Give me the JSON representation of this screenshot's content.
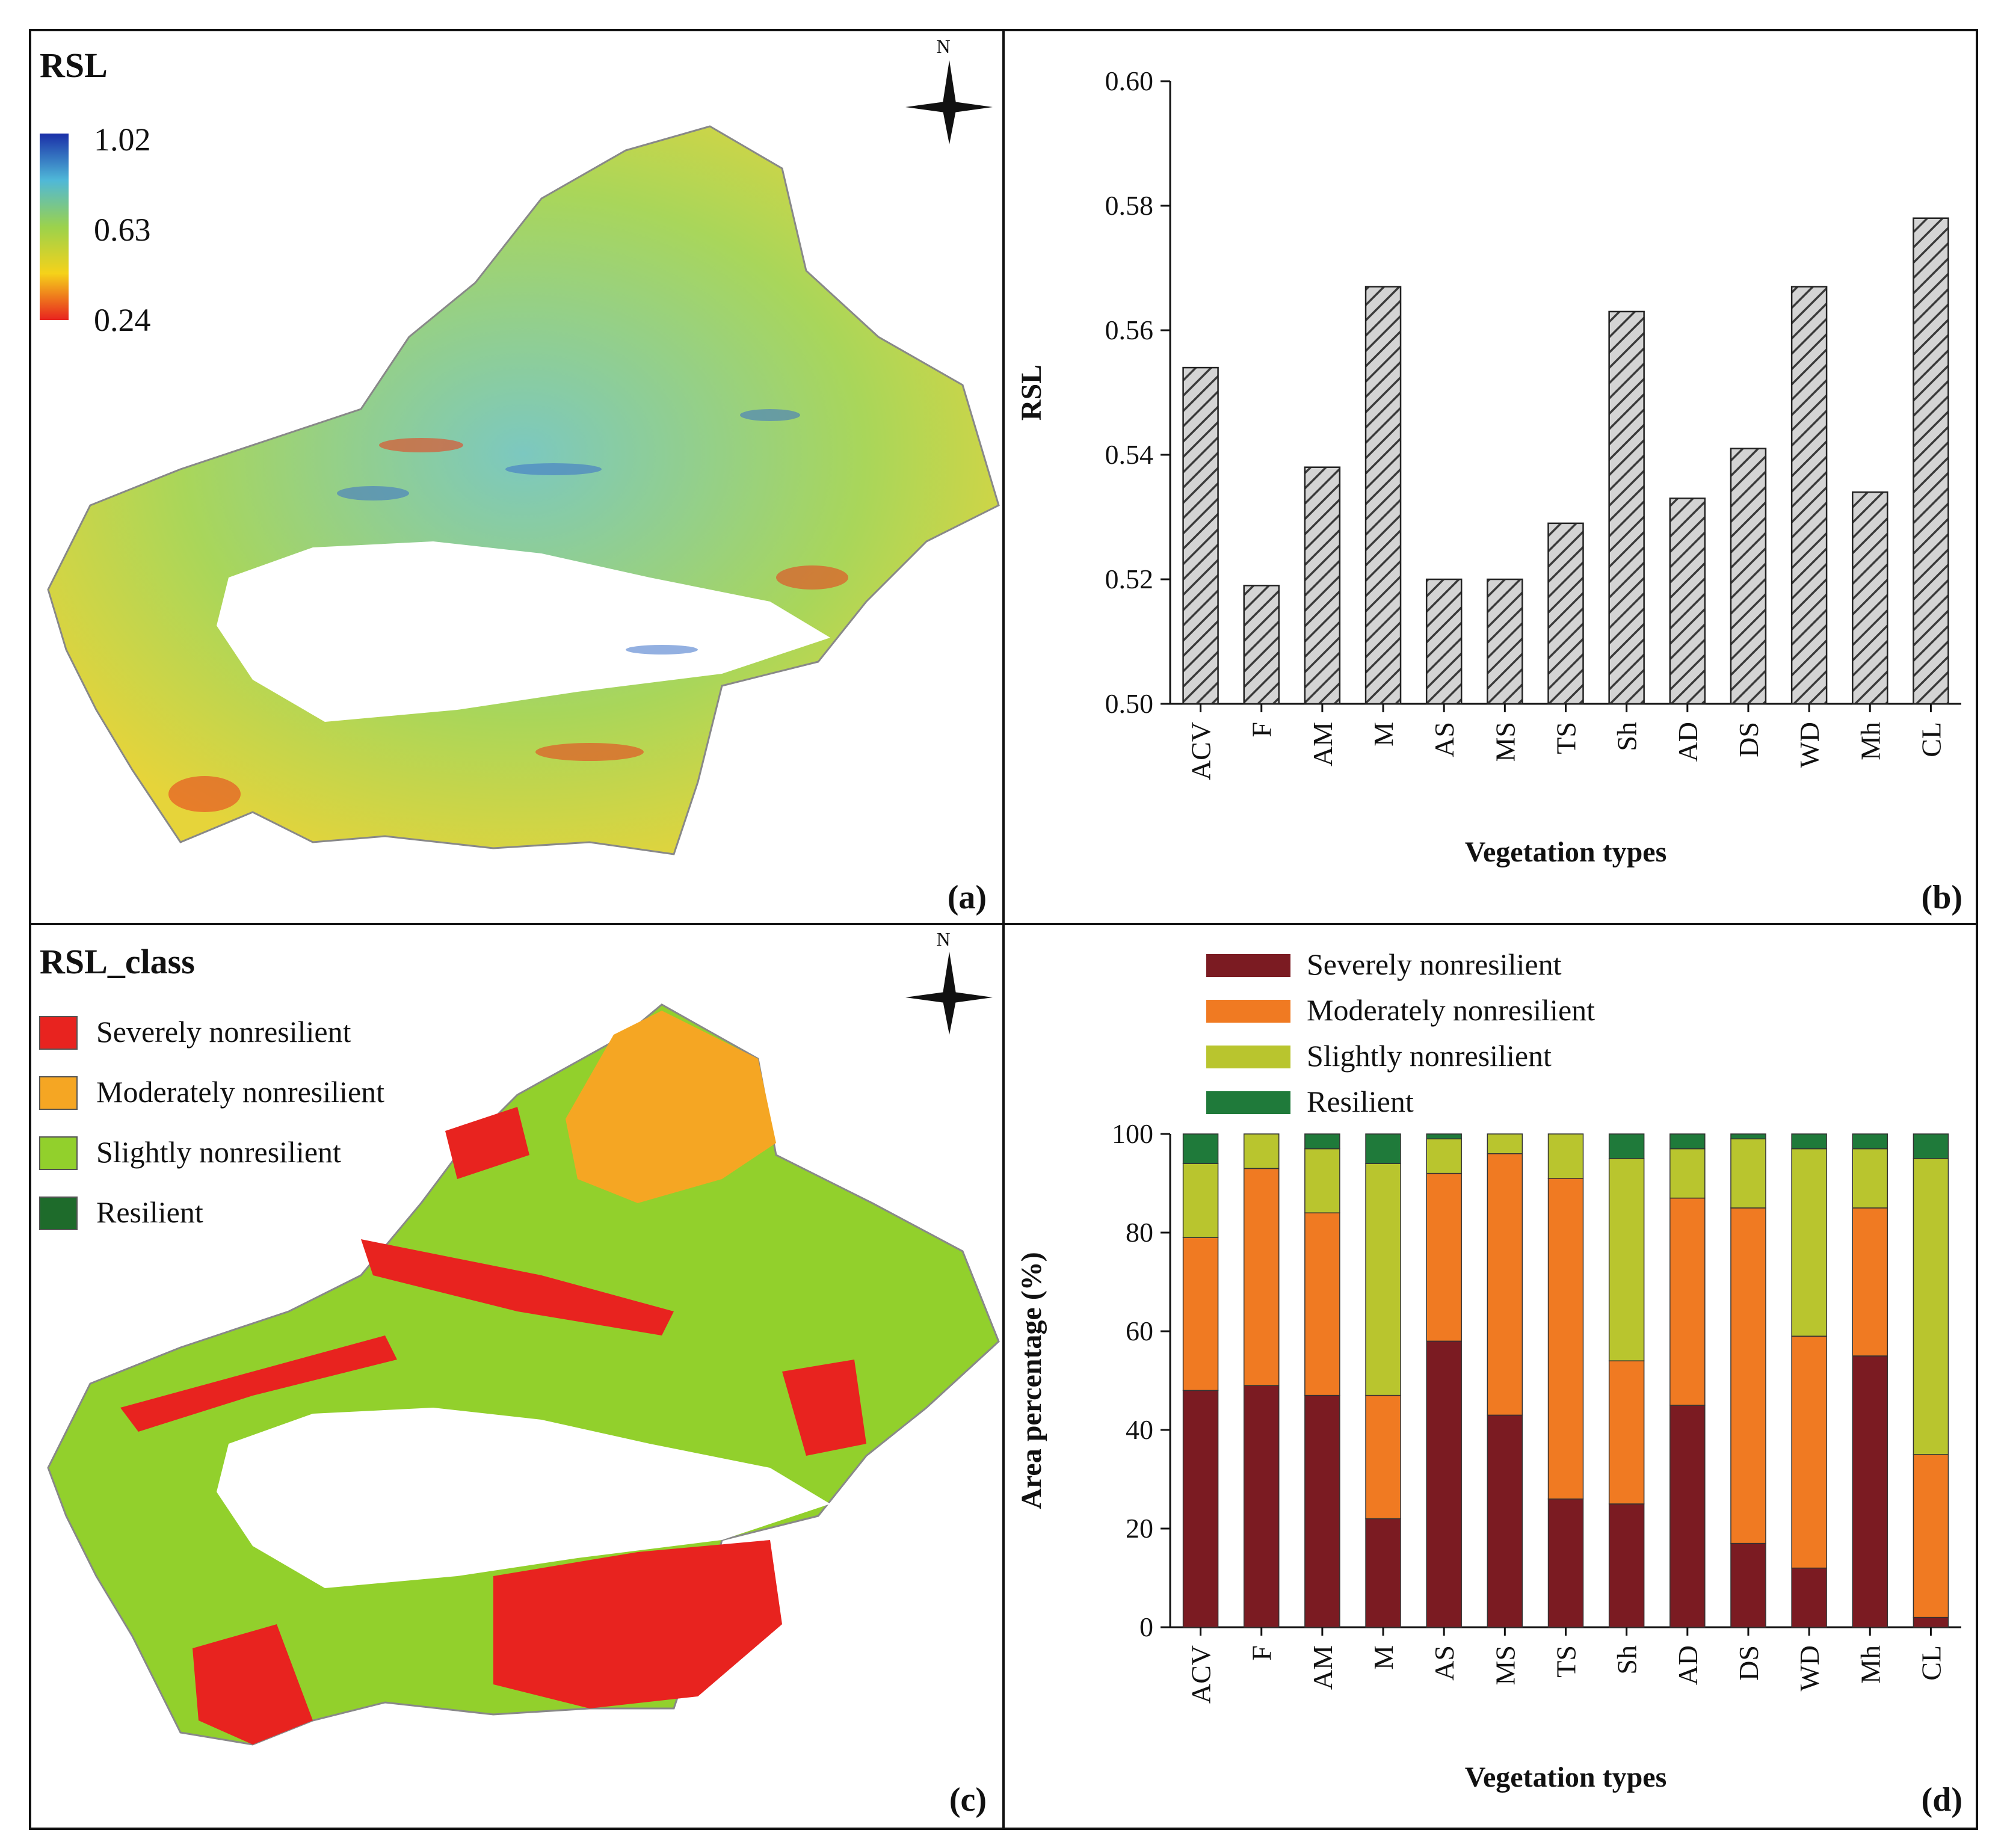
{
  "panels": {
    "a": {
      "label": "(a)",
      "title": "RSL",
      "colorbar": [
        "1.02",
        "0.63",
        "0.24"
      ],
      "north": "N"
    },
    "b": {
      "label": "(b)"
    },
    "c": {
      "label": "(c)",
      "title": "RSL_class",
      "north": "N",
      "legend": [
        {
          "name": "Severely nonresilient",
          "color": "#e8231f"
        },
        {
          "name": "Moderately nonresilient",
          "color": "#f5a623"
        },
        {
          "name": "Slightly nonresilient",
          "color": "#92d02c"
        },
        {
          "name": "Resilient",
          "color": "#1e6b2b"
        }
      ]
    },
    "d": {
      "label": "(d)"
    }
  },
  "colors": {
    "severe": "#7b1b22",
    "moderate": "#f07a22",
    "slight": "#b9c52e",
    "resilient": "#1f7a3a",
    "bar_fill": "#d0d0d0",
    "bar_hatch": "#444444"
  },
  "chart_data": [
    {
      "type": "bar",
      "title": "",
      "xlabel": "Vegetation types",
      "ylabel": "RSL",
      "ylim": [
        0.5,
        0.6
      ],
      "yticks": [
        "0.50",
        "0.52",
        "0.54",
        "0.56",
        "0.58",
        "0.60"
      ],
      "categories": [
        "ACV",
        "F",
        "AM",
        "M",
        "AS",
        "MS",
        "TS",
        "Sh",
        "AD",
        "DS",
        "WD",
        "Mh",
        "CL"
      ],
      "values": [
        0.554,
        0.519,
        0.538,
        0.567,
        0.52,
        0.52,
        0.529,
        0.563,
        0.533,
        0.541,
        0.567,
        0.534,
        0.578
      ]
    },
    {
      "type": "bar",
      "stacked": true,
      "title": "",
      "xlabel": "Vegetation types",
      "ylabel": "Area percentage (%)",
      "ylim": [
        0,
        100
      ],
      "yticks": [
        "0",
        "20",
        "40",
        "60",
        "80",
        "100"
      ],
      "categories": [
        "ACV",
        "F",
        "AM",
        "M",
        "AS",
        "MS",
        "TS",
        "Sh",
        "AD",
        "DS",
        "WD",
        "Mh",
        "CL"
      ],
      "series": [
        {
          "name": "Severely nonresilient",
          "values": [
            48,
            49,
            47,
            22,
            58,
            43,
            26,
            25,
            45,
            17,
            12,
            55,
            2
          ]
        },
        {
          "name": "Moderately nonresilient",
          "values": [
            31,
            44,
            37,
            25,
            34,
            53,
            65,
            29,
            42,
            68,
            47,
            30,
            33
          ]
        },
        {
          "name": "Slightly nonresilient",
          "values": [
            15,
            7,
            13,
            47,
            7,
            4,
            9,
            41,
            10,
            14,
            38,
            12,
            60
          ]
        },
        {
          "name": "Resilient",
          "values": [
            6,
            0,
            3,
            6,
            1,
            0,
            0,
            5,
            3,
            1,
            3,
            3,
            5
          ]
        }
      ]
    }
  ]
}
